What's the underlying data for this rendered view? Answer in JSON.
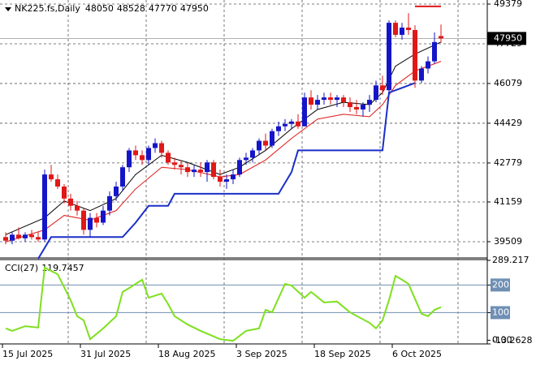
{
  "chart_data": {
    "type": "candlestick",
    "title": "NK225.fs,Daily",
    "up_color": "#1515c8",
    "down_color": "#e01818",
    "open": [
      39700,
      39550,
      39800,
      39650,
      39800,
      39700,
      39600,
      42300,
      42100,
      41800,
      41300,
      41000,
      40800,
      40000,
      40500,
      40300,
      40800,
      41400,
      41800,
      42600,
      43300,
      43100,
      42900,
      43400,
      43600,
      43200,
      42800,
      42700,
      42600,
      42400,
      42500,
      42400,
      42800,
      42200,
      42000,
      42100,
      42300,
      42900,
      43000,
      43300,
      43700,
      43500,
      44100,
      44300,
      44400,
      44500,
      44300,
      45500,
      45200,
      45400,
      45500,
      45400,
      45500,
      45300,
      45100,
      45000,
      45200,
      45400,
      46000,
      45800,
      48600,
      48100,
      48400,
      48300,
      46200,
      46700,
      47000,
      48050
    ],
    "high": [
      39900,
      39900,
      40100,
      39900,
      40000,
      39900,
      42500,
      42700,
      42300,
      41900,
      41500,
      41200,
      40900,
      40700,
      40700,
      41000,
      41600,
      42000,
      42700,
      43400,
      43500,
      43300,
      43500,
      43800,
      43700,
      43300,
      43000,
      42900,
      42800,
      42700,
      42800,
      42900,
      42900,
      42500,
      42300,
      42500,
      43000,
      43200,
      43400,
      43800,
      44000,
      44200,
      44500,
      44600,
      44600,
      44800,
      45700,
      45800,
      45600,
      45700,
      45700,
      45600,
      45600,
      45500,
      45400,
      45300,
      45600,
      46200,
      46400,
      48700,
      48700,
      48600,
      49000,
      48500,
      46800,
      47200,
      48200,
      48528
    ],
    "low": [
      39400,
      39400,
      39600,
      39500,
      39600,
      39500,
      39500,
      42000,
      41700,
      41100,
      40800,
      40600,
      39800,
      39700,
      40100,
      40200,
      40600,
      41200,
      41600,
      42400,
      42900,
      42700,
      42700,
      43200,
      43000,
      42700,
      42500,
      42300,
      42200,
      42200,
      42200,
      42000,
      42100,
      41800,
      41700,
      41900,
      42200,
      42700,
      42800,
      43100,
      43300,
      43400,
      43900,
      44100,
      44200,
      44200,
      44300,
      45000,
      45000,
      45200,
      45200,
      45100,
      45100,
      44900,
      44800,
      44700,
      44900,
      45300,
      45600,
      45700,
      48000,
      47900,
      48100,
      45900,
      46100,
      46500,
      46900,
      47770
    ],
    "close": [
      39550,
      39800,
      39650,
      39800,
      39700,
      39600,
      42300,
      42100,
      41800,
      41300,
      41000,
      40800,
      40000,
      40500,
      40300,
      40800,
      41400,
      41800,
      42600,
      43300,
      43100,
      42900,
      43400,
      43600,
      43200,
      42800,
      42700,
      42600,
      42400,
      42500,
      42400,
      42800,
      42200,
      42000,
      42100,
      42300,
      42900,
      43000,
      43300,
      43700,
      43500,
      44100,
      44300,
      44400,
      44500,
      44300,
      45500,
      45200,
      45400,
      45500,
      45400,
      45500,
      45300,
      45100,
      45000,
      45200,
      45400,
      46000,
      45800,
      48600,
      48100,
      48400,
      48300,
      46200,
      46700,
      47000,
      47800,
      47950
    ],
    "ylim": [
      38834,
      49547
    ],
    "yticks": [
      49379,
      47729,
      46079,
      44429,
      42779,
      41159,
      39509
    ],
    "date_ticks": [
      {
        "value": 0,
        "label": "15 Jul 2025"
      },
      {
        "value": 12,
        "label": "31 Jul 2025"
      },
      {
        "value": 24,
        "label": "18 Aug 2025"
      },
      {
        "value": 36,
        "label": "3 Sep 2025"
      },
      {
        "value": 48,
        "label": "18 Sep 2025"
      },
      {
        "value": 60,
        "label": "6 Oct 2025"
      }
    ],
    "overlays": [
      {
        "color": "#000000",
        "width": 1,
        "x": [
          0,
          6,
          9,
          13,
          17,
          20,
          24,
          28,
          33,
          36,
          40,
          44,
          48,
          52,
          56,
          58,
          60,
          63,
          67
        ],
        "values": [
          39800,
          40500,
          41200,
          40800,
          41300,
          42300,
          43100,
          42800,
          42300,
          42600,
          43300,
          44200,
          45000,
          45300,
          45200,
          45700,
          46800,
          47300,
          47800
        ]
      },
      {
        "color": "#e01818",
        "width": 1,
        "x": [
          0,
          6,
          9,
          13,
          17,
          20,
          24,
          28,
          33,
          36,
          40,
          44,
          48,
          52,
          56,
          58,
          60,
          63,
          67
        ],
        "values": [
          39500,
          40000,
          40600,
          40400,
          40800,
          41700,
          42600,
          42500,
          42200,
          42300,
          42900,
          43800,
          44600,
          44800,
          44700,
          45200,
          46000,
          46600,
          47000
        ]
      },
      {
        "color": "#1a2fc8",
        "width": 2,
        "x": [
          5,
          7,
          18,
          20,
          22,
          25,
          26,
          42,
          44,
          45,
          58,
          59,
          61,
          63
        ],
        "values": [
          38800,
          39700,
          39700,
          40300,
          41000,
          41000,
          41500,
          41500,
          42400,
          43300,
          43300,
          45700,
          45900,
          46100
        ]
      },
      {
        "color": "#e01818",
        "width": 2,
        "x": [
          63,
          67
        ],
        "values": [
          49280,
          49280
        ]
      }
    ],
    "cci": {
      "title": "CCI(27)",
      "last_value": 119.7457,
      "color": "#7ee01e",
      "ylim": [
        -13.2628,
        289.217
      ],
      "yticks": [
        289.217,
        200,
        100,
        {
          "value": 0,
          "label": "0.00"
        },
        -13.2628
      ],
      "levels": [
        200,
        100
      ],
      "x": [
        0,
        1,
        3,
        5,
        6,
        8,
        10,
        11,
        12,
        13,
        15,
        17,
        18,
        19,
        21,
        22,
        24,
        25,
        26,
        28,
        30,
        33,
        35,
        37,
        39,
        40,
        41,
        43,
        44,
        46,
        47,
        49,
        51,
        53,
        56,
        57,
        58,
        59,
        60,
        61,
        62,
        64,
        65,
        66,
        67
      ],
      "values": [
        43,
        34,
        51,
        46,
        263,
        239,
        145,
        87,
        72,
        4,
        43,
        87,
        175,
        189,
        219,
        154,
        169,
        131,
        87,
        57,
        34,
        4,
        -2,
        34,
        43,
        110,
        101,
        204,
        198,
        154,
        175,
        137,
        140,
        101,
        63,
        43,
        72,
        145,
        233,
        219,
        204,
        96,
        87,
        110,
        119.7457
      ]
    }
  }
}
